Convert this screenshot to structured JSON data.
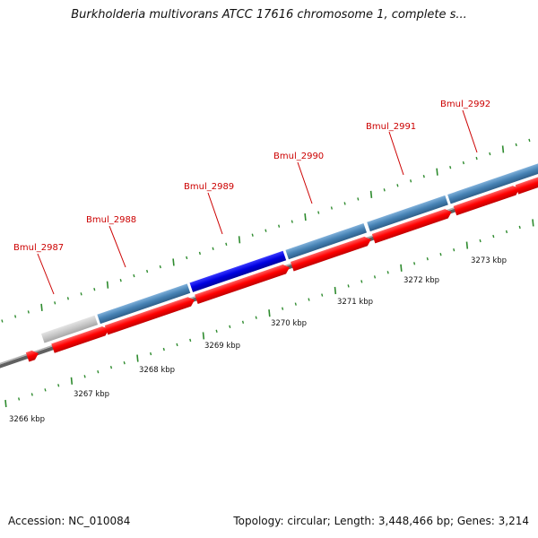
{
  "title": "Burkholderia multivorans ATCC 17616 chromosome 1, complete s...",
  "footer": {
    "accession": "Accession: NC_010084",
    "summary": "Topology: circular; Length: 3,448,466 bp; Genes: 3,214"
  },
  "colors": {
    "backbone": "#808080",
    "forward_cds": "#ff0000",
    "gene_feature": "#4682b4",
    "highlighted_gene": "#0000cd",
    "partial_gene": "#c0c0c0",
    "tick": "#2e8b2e",
    "gene_label": "#cc0000"
  },
  "axis": {
    "unit": "kbp",
    "tick_labels": [
      "3266 kbp",
      "3267 kbp",
      "3268 kbp",
      "3269 kbp",
      "3270 kbp",
      "3271 kbp",
      "3272 kbp",
      "3273 kbp"
    ]
  },
  "gene_labels": [
    "Bmul_2987",
    "Bmul_2988",
    "Bmul_2989",
    "Bmul_2990",
    "Bmul_2991",
    "Bmul_2992"
  ]
}
